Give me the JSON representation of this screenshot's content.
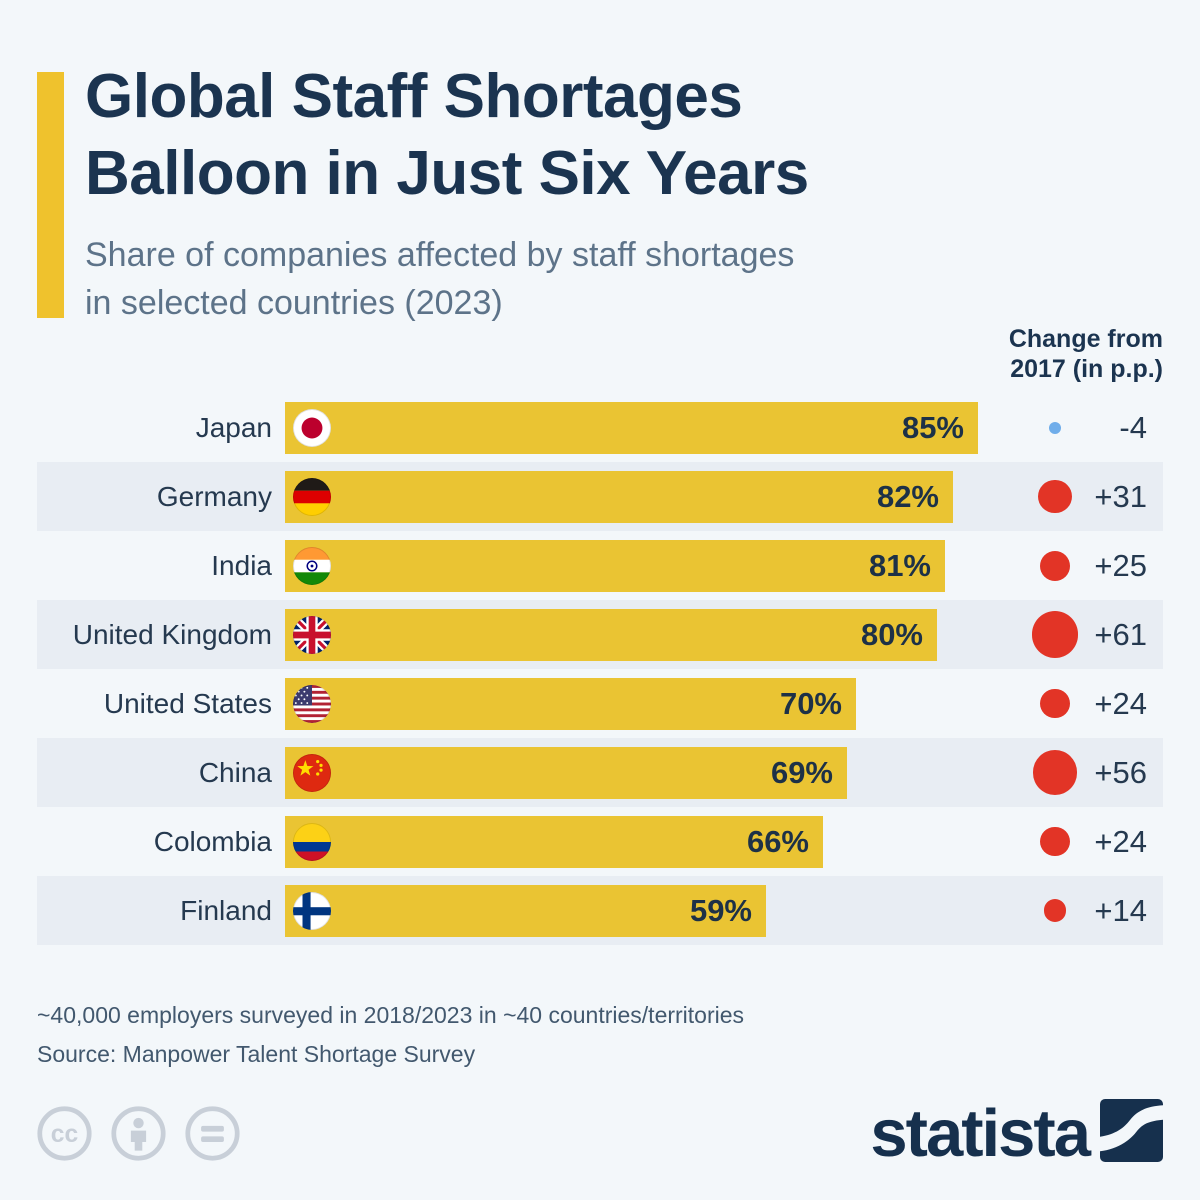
{
  "title": {
    "line1": "Global Staff Shortages",
    "line2": "Balloon in Just Six Years"
  },
  "subtitle": {
    "line1": "Share of companies affected by staff shortages",
    "line2": "in selected countries (2023)"
  },
  "change_header": {
    "line1": "Change from",
    "line2": "2017 (in p.p.)"
  },
  "chart_data": {
    "type": "bar",
    "orientation": "horizontal",
    "title": "Global Staff Shortages Balloon in Just Six Years",
    "subtitle": "Share of companies affected by staff shortages in selected countries (2023)",
    "categories": [
      "Japan",
      "Germany",
      "India",
      "United Kingdom",
      "United States",
      "China",
      "Colombia",
      "Finland"
    ],
    "series": [
      {
        "name": "Share of companies affected (2023, %)",
        "values": [
          85,
          82,
          81,
          80,
          70,
          69,
          66,
          59
        ]
      },
      {
        "name": "Change from 2017 (in p.p.)",
        "values": [
          -4,
          31,
          25,
          61,
          24,
          56,
          24,
          14
        ]
      }
    ],
    "xlim": [
      0,
      100
    ],
    "grid": false,
    "legend_position": "none",
    "value_suffix": "%"
  },
  "rows": [
    {
      "country": "Japan",
      "flag": "jp",
      "flag_icon": "flag-japan-icon",
      "value": 85,
      "value_label": "85%",
      "change": -4,
      "change_label": "-4"
    },
    {
      "country": "Germany",
      "flag": "de",
      "flag_icon": "flag-germany-icon",
      "value": 82,
      "value_label": "82%",
      "change": 31,
      "change_label": "+31"
    },
    {
      "country": "India",
      "flag": "in",
      "flag_icon": "flag-india-icon",
      "value": 81,
      "value_label": "81%",
      "change": 25,
      "change_label": "+25"
    },
    {
      "country": "United Kingdom",
      "flag": "gb",
      "flag_icon": "flag-united-kingdom-icon",
      "value": 80,
      "value_label": "80%",
      "change": 61,
      "change_label": "+61"
    },
    {
      "country": "United States",
      "flag": "us",
      "flag_icon": "flag-united-states-icon",
      "value": 70,
      "value_label": "70%",
      "change": 24,
      "change_label": "+24"
    },
    {
      "country": "China",
      "flag": "cn",
      "flag_icon": "flag-china-icon",
      "value": 69,
      "value_label": "69%",
      "change": 56,
      "change_label": "+56"
    },
    {
      "country": "Colombia",
      "flag": "co",
      "flag_icon": "flag-colombia-icon",
      "value": 66,
      "value_label": "66%",
      "change": 24,
      "change_label": "+24"
    },
    {
      "country": "Finland",
      "flag": "fi",
      "flag_icon": "flag-finland-icon",
      "value": 59,
      "value_label": "59%",
      "change": 14,
      "change_label": "+14"
    }
  ],
  "footnote": "~40,000 employers surveyed in 2018/2023 in ~40 countries/territories",
  "source": "Source: Manpower Talent Shortage Survey",
  "branding": {
    "logo_text": "statista",
    "logo_mark": "statista-swoosh-icon"
  },
  "license_icons": [
    "cc-icon",
    "cc-by-icon",
    "cc-nd-icon"
  ],
  "colors": {
    "background": "#f3f7fa",
    "row_band": "#e8edf3",
    "bar": "#eac433",
    "accent": "#efc22d",
    "title": "#1b3450",
    "subtitle": "#5d7389",
    "positive_dot": "#e23426",
    "negative_dot": "#6fadea",
    "footer_text": "#42586e",
    "logo_navy": "#16304d"
  }
}
